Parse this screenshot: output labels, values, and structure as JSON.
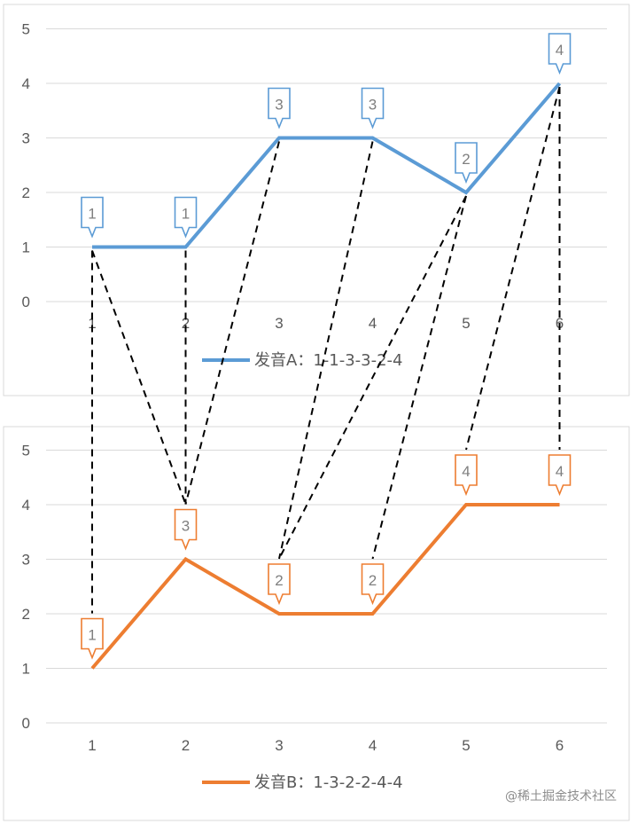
{
  "chart_data": [
    {
      "type": "line",
      "categories": [
        1,
        2,
        3,
        4,
        5,
        6
      ],
      "series": [
        {
          "name": "发音A：1-1-3-3-2-4",
          "values": [
            1,
            1,
            3,
            3,
            2,
            4
          ],
          "color": "#5b9bd5"
        }
      ],
      "data_labels": [
        "1",
        "1",
        "3",
        "3",
        "2",
        "4"
      ],
      "ylim": [
        0,
        5
      ],
      "yticks": [
        0,
        1,
        2,
        3,
        4,
        5
      ],
      "grid": true,
      "legend": "bottom"
    },
    {
      "type": "line",
      "categories": [
        1,
        2,
        3,
        4,
        5,
        6
      ],
      "series": [
        {
          "name": "发音B：1-3-2-2-4-4",
          "values": [
            1,
            3,
            2,
            2,
            4,
            4
          ],
          "color": "#ed7d31"
        }
      ],
      "data_labels": [
        "1",
        "3",
        "2",
        "2",
        "4",
        "4"
      ],
      "ylim": [
        0,
        5
      ],
      "yticks": [
        0,
        1,
        2,
        3,
        4,
        5
      ],
      "grid": true,
      "legend": "bottom"
    }
  ],
  "alignment": {
    "color": "#000000",
    "pairs": [
      [
        1,
        1
      ],
      [
        1,
        2
      ],
      [
        2,
        2
      ],
      [
        3,
        2
      ],
      [
        4,
        3
      ],
      [
        5,
        3
      ],
      [
        5,
        4
      ],
      [
        6,
        5
      ],
      [
        6,
        6
      ]
    ]
  },
  "watermark": "@稀土掘金技术社区"
}
